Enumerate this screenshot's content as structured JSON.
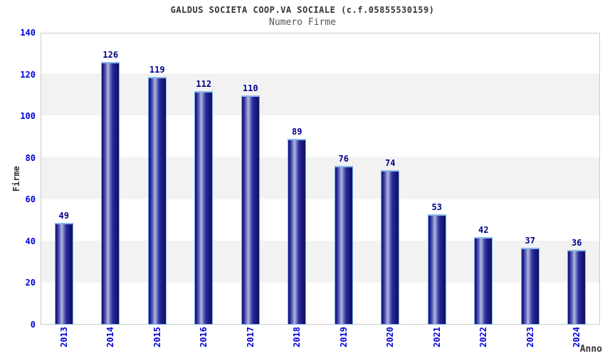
{
  "header": {
    "title": "GALDUS SOCIETA COOP.VA SOCIALE (c.f.05855530159)",
    "subtitle": "Numero Firme"
  },
  "chart_data": {
    "type": "bar",
    "title": "GALDUS SOCIETA COOP.VA SOCIALE (c.f.05855530159)",
    "subtitle": "Numero Firme",
    "categories": [
      "2013",
      "2014",
      "2015",
      "2016",
      "2017",
      "2018",
      "2019",
      "2020",
      "2021",
      "2022",
      "2023",
      "2024"
    ],
    "values": [
      49,
      126,
      119,
      112,
      110,
      89,
      76,
      74,
      53,
      42,
      37,
      36
    ],
    "xlabel": "Anno",
    "ylabel": "Firme",
    "ylim": [
      0,
      140
    ],
    "ytick_step": 20,
    "yticks": [
      0,
      20,
      40,
      60,
      80,
      100,
      120,
      140
    ],
    "grid": "alternating horizontal bands every 20 units",
    "legend": false,
    "colors": {
      "bar_dark": "#16166e",
      "bar_highlight": "#b6bbde",
      "bar_border": "#7db0e8",
      "axis_tick_label": "#0000dd",
      "value_label": "#00008b",
      "band_alt": "#f2f2f2",
      "plot_border": "#cccccc",
      "title_text": "#333333",
      "subtitle_text": "#555555"
    }
  }
}
